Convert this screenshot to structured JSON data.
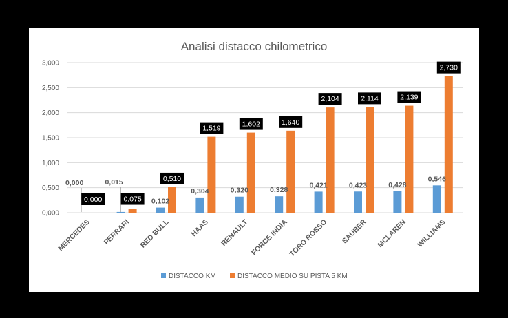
{
  "chart_data": {
    "type": "bar",
    "title": "Analisi distacco chilometrico",
    "categories": [
      "MERCEDES",
      "FERRARI",
      "RED BULL",
      "HAAS",
      "RENAULT",
      "FORCE INDIA",
      "TORO ROSSO",
      "SAUBER",
      "MCLAREN",
      "WILLIAMS"
    ],
    "series": [
      {
        "name": "DISTACCO KM",
        "color": "#5B9BD5",
        "values": [
          0.0,
          0.015,
          0.102,
          0.304,
          0.32,
          0.328,
          0.421,
          0.423,
          0.428,
          0.546
        ],
        "labels": [
          "0,000",
          "0,015",
          "0,102",
          "0,304",
          "0,320",
          "0,328",
          "0,421",
          "0,423",
          "0,428",
          "0,546"
        ]
      },
      {
        "name": "DISTACCO MEDIO SU PISTA  5 KM",
        "color": "#ED7D31",
        "values": [
          0.0,
          0.075,
          0.51,
          1.519,
          1.602,
          1.64,
          2.104,
          2.114,
          2.139,
          2.73
        ],
        "labels": [
          "0,000",
          "0,075",
          "0,510",
          "1,519",
          "1,602",
          "1,640",
          "2,104",
          "2,114",
          "2,139",
          "2,730"
        ]
      }
    ],
    "ylim": [
      0,
      3
    ],
    "yticks": [
      0,
      0.5,
      1,
      1.5,
      2,
      2.5,
      3
    ],
    "ytick_labels": [
      "0,000",
      "0,500",
      "1,000",
      "1,500",
      "2,000",
      "2,500",
      "3,000"
    ],
    "grid": true,
    "legend": "bottom",
    "xlabel": "",
    "ylabel": ""
  }
}
